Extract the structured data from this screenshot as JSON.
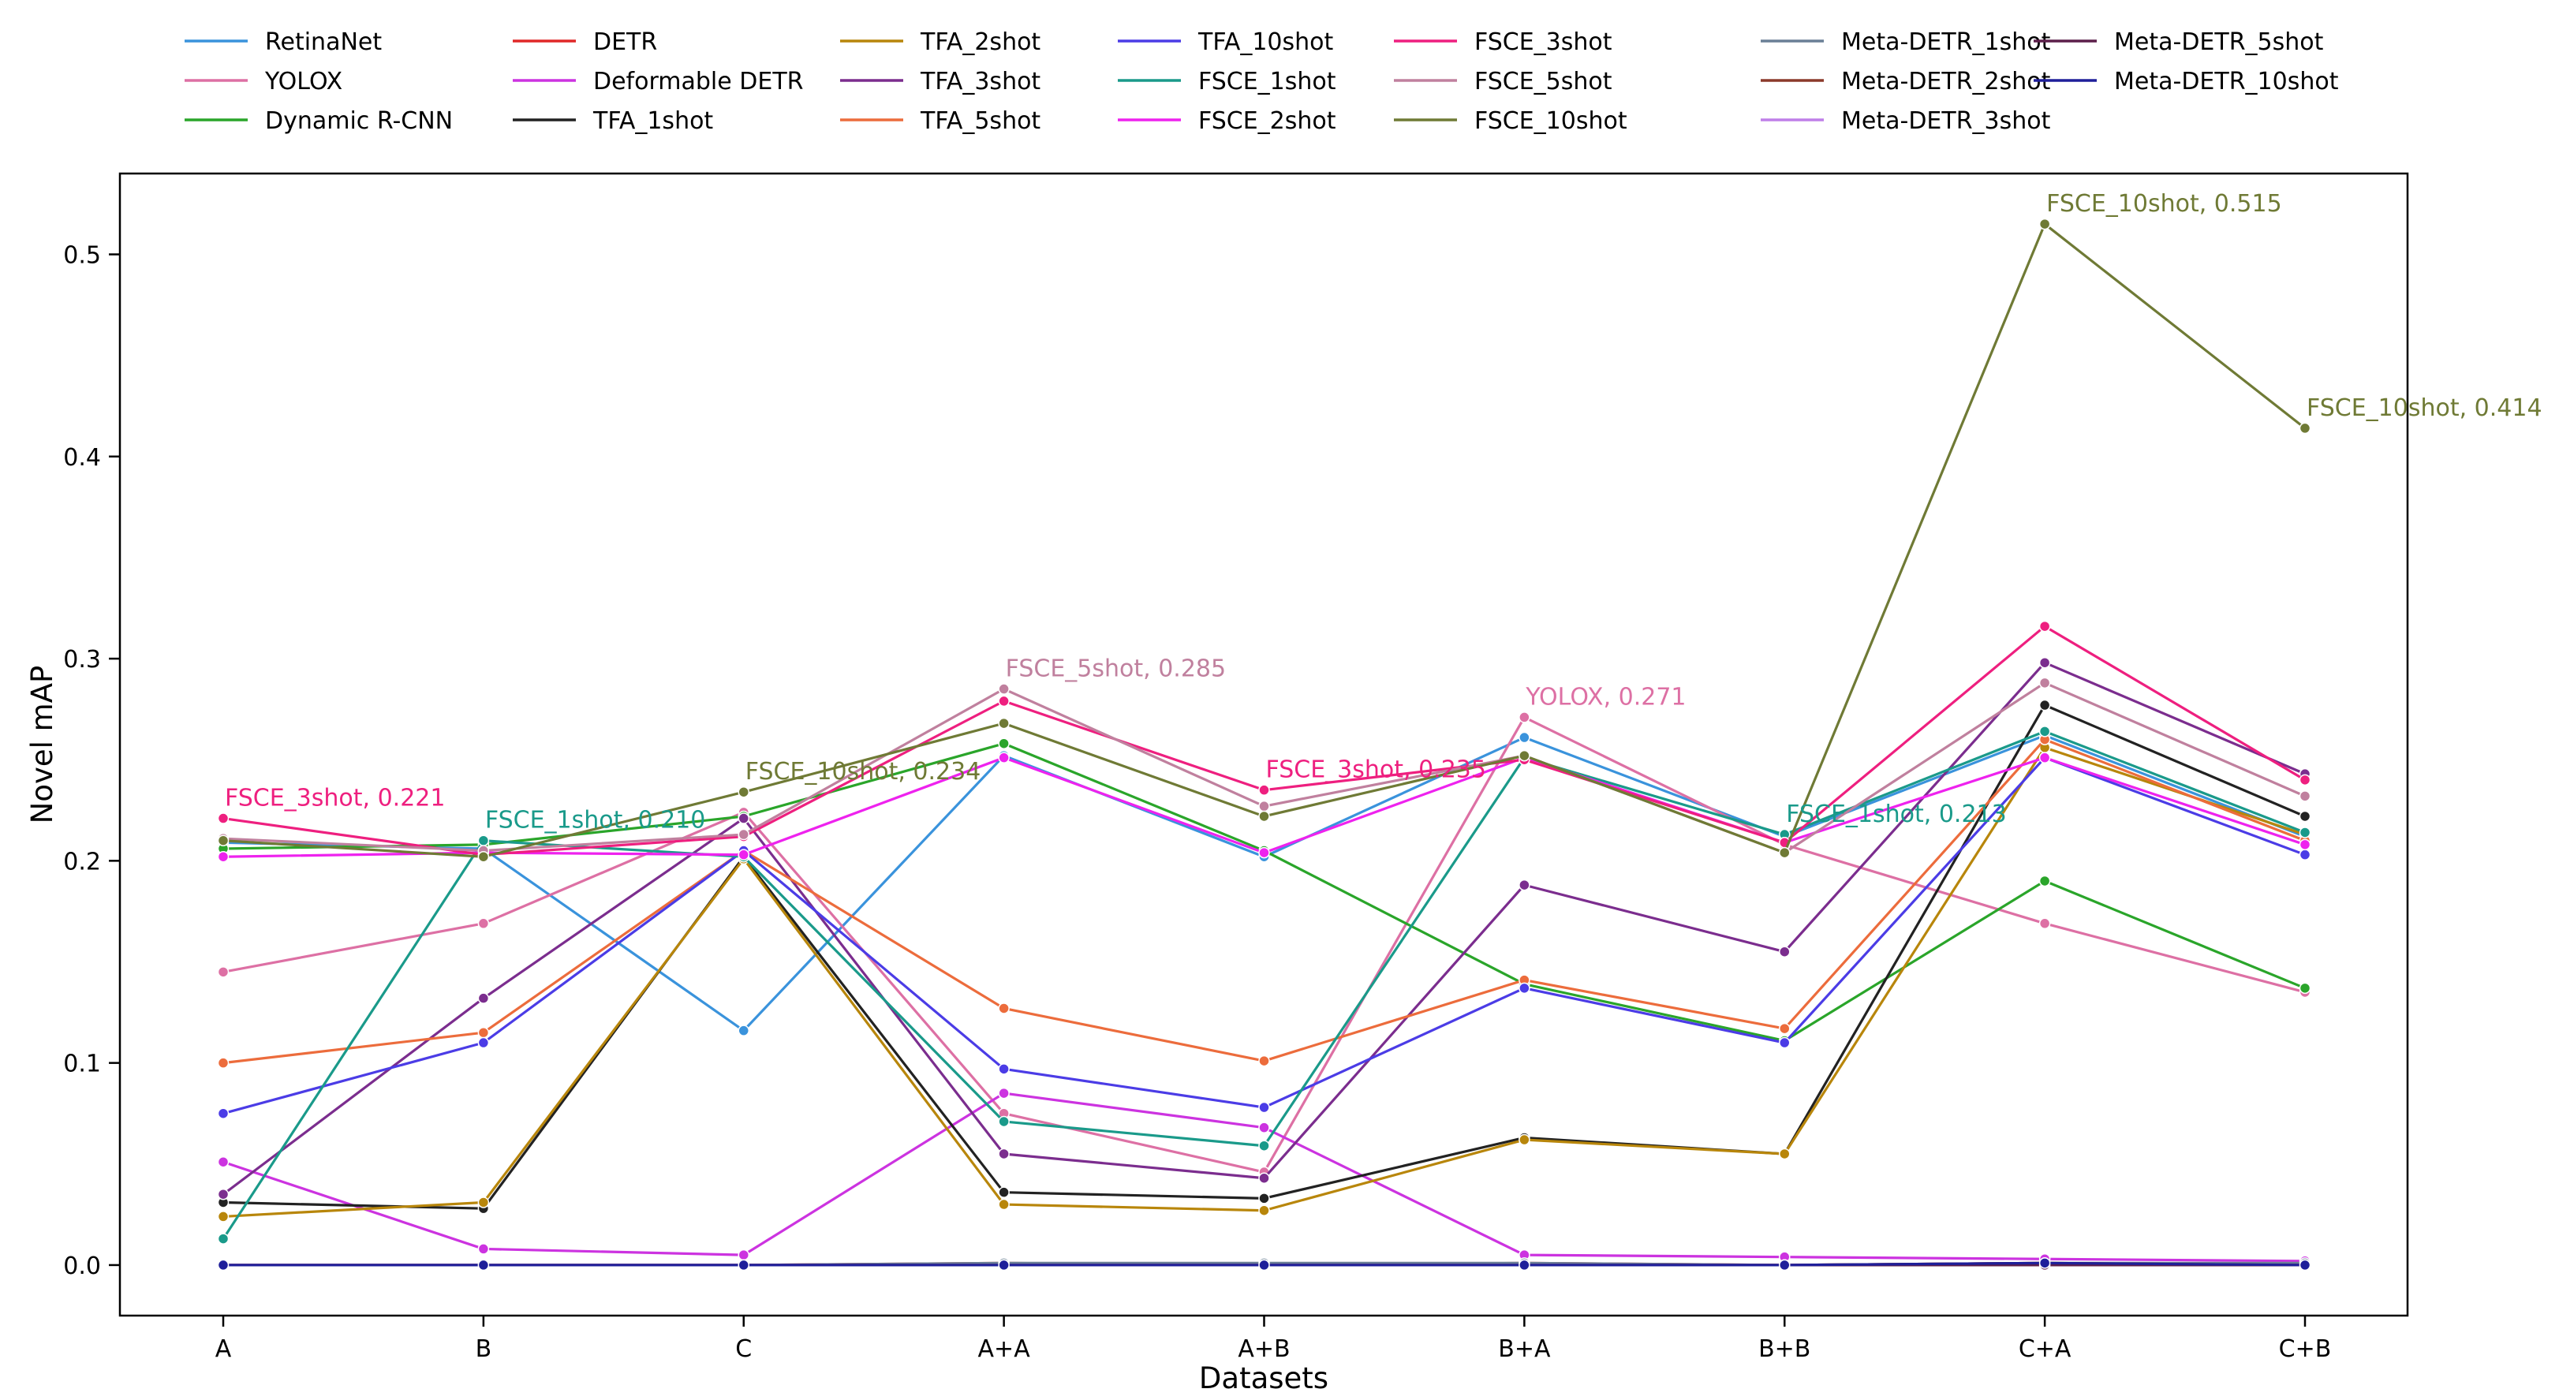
{
  "chart_data": {
    "type": "line",
    "title": "",
    "xlabel": "Datasets",
    "ylabel": "Novel mAP",
    "categories": [
      "A",
      "B",
      "C",
      "A+A",
      "A+B",
      "B+A",
      "B+B",
      "C+A",
      "C+B"
    ],
    "ylim": [
      -0.025,
      0.54
    ],
    "yticks": [
      0.0,
      0.1,
      0.2,
      0.3,
      0.4,
      0.5
    ],
    "ytick_labels": [
      "0.0",
      "0.1",
      "0.2",
      "0.3",
      "0.4",
      "0.5"
    ],
    "grid": false,
    "legend_position": "top",
    "series": [
      {
        "name": "RetinaNet",
        "color": "#3a93dc",
        "values": [
          0.209,
          0.206,
          0.116,
          0.252,
          0.202,
          0.261,
          0.212,
          0.262,
          0.212
        ]
      },
      {
        "name": "YOLOX",
        "color": "#dd70a4",
        "values": [
          0.145,
          0.169,
          0.224,
          0.075,
          0.046,
          0.271,
          0.208,
          0.169,
          0.135
        ]
      },
      {
        "name": "Dynamic R-CNN",
        "color": "#2aa52a",
        "values": [
          0.206,
          0.208,
          0.222,
          0.258,
          0.205,
          0.139,
          0.111,
          0.19,
          0.137
        ]
      },
      {
        "name": "DETR",
        "color": "#e02828",
        "values": [
          0.0,
          0.0,
          0.0,
          0.001,
          0.0,
          0.001,
          0.0,
          0.001,
          0.0
        ]
      },
      {
        "name": "Deformable DETR",
        "color": "#cc33e0",
        "values": [
          0.051,
          0.008,
          0.005,
          0.085,
          0.068,
          0.005,
          0.004,
          0.003,
          0.002
        ]
      },
      {
        "name": "TFA_1shot",
        "color": "#222222",
        "values": [
          0.031,
          0.028,
          0.202,
          0.036,
          0.033,
          0.063,
          0.055,
          0.277,
          0.222
        ]
      },
      {
        "name": "TFA_2shot",
        "color": "#b8860b",
        "values": [
          0.024,
          0.031,
          0.201,
          0.03,
          0.027,
          0.062,
          0.055,
          0.256,
          0.213
        ]
      },
      {
        "name": "TFA_3shot",
        "color": "#7b2d8e",
        "values": [
          0.035,
          0.132,
          0.221,
          0.055,
          0.043,
          0.188,
          0.155,
          0.298,
          0.243
        ]
      },
      {
        "name": "TFA_5shot",
        "color": "#ec6c3c",
        "values": [
          0.1,
          0.115,
          0.205,
          0.127,
          0.101,
          0.141,
          0.117,
          0.26,
          0.21
        ]
      },
      {
        "name": "TFA_10shot",
        "color": "#4b3ce6",
        "values": [
          0.075,
          0.11,
          0.205,
          0.097,
          0.078,
          0.137,
          0.11,
          0.251,
          0.203
        ]
      },
      {
        "name": "FSCE_1shot",
        "color": "#1a9a8a",
        "values": [
          0.013,
          0.21,
          0.202,
          0.071,
          0.059,
          0.251,
          0.213,
          0.264,
          0.214
        ]
      },
      {
        "name": "FSCE_2shot",
        "color": "#ee22ee",
        "values": [
          0.202,
          0.204,
          0.203,
          0.251,
          0.204,
          0.251,
          0.209,
          0.251,
          0.208
        ]
      },
      {
        "name": "FSCE_3shot",
        "color": "#ee1f7f",
        "values": [
          0.221,
          0.203,
          0.212,
          0.279,
          0.235,
          0.25,
          0.209,
          0.316,
          0.24
        ]
      },
      {
        "name": "FSCE_5shot",
        "color": "#c0809e",
        "values": [
          0.211,
          0.205,
          0.213,
          0.285,
          0.227,
          0.252,
          0.204,
          0.288,
          0.232
        ]
      },
      {
        "name": "FSCE_10shot",
        "color": "#6f7a35",
        "values": [
          0.21,
          0.202,
          0.234,
          0.268,
          0.222,
          0.252,
          0.204,
          0.515,
          0.414
        ]
      },
      {
        "name": "Meta-DETR_1shot",
        "color": "#6a7f96",
        "values": [
          0.0,
          0.0,
          0.0,
          0.001,
          0.001,
          0.001,
          0.0,
          0.001,
          0.001
        ]
      },
      {
        "name": "Meta-DETR_2shot",
        "color": "#8b3a2a",
        "values": [
          0.0,
          0.0,
          0.0,
          0.0,
          0.0,
          0.0,
          0.0,
          0.001,
          0.0
        ]
      },
      {
        "name": "Meta-DETR_3shot",
        "color": "#bf7fe8",
        "values": [
          0.0,
          0.0,
          0.0,
          0.0,
          0.0,
          0.0,
          0.0,
          0.0,
          0.0
        ]
      },
      {
        "name": "Meta-DETR_5shot",
        "color": "#5c1f4a",
        "values": [
          0.0,
          0.0,
          0.0,
          0.0,
          0.0,
          0.0,
          0.0,
          0.0,
          0.0
        ]
      },
      {
        "name": "Meta-DETR_10shot",
        "color": "#1f1f9a",
        "values": [
          0.0,
          0.0,
          0.0,
          0.0,
          0.0,
          0.0,
          0.0,
          0.001,
          0.0
        ]
      }
    ],
    "annotations": [
      {
        "text": "FSCE_3shot, 0.221",
        "series": "FSCE_3shot",
        "category": "A",
        "value": 0.221
      },
      {
        "text": "FSCE_1shot, 0.210",
        "series": "FSCE_1shot",
        "category": "B",
        "value": 0.21
      },
      {
        "text": "FSCE_10shot, 0.234",
        "series": "FSCE_10shot",
        "category": "C",
        "value": 0.234
      },
      {
        "text": "FSCE_5shot, 0.285",
        "series": "FSCE_5shot",
        "category": "A+A",
        "value": 0.285
      },
      {
        "text": "FSCE_3shot, 0.235",
        "series": "FSCE_3shot",
        "category": "A+B",
        "value": 0.235
      },
      {
        "text": "YOLOX, 0.271",
        "series": "YOLOX",
        "category": "B+A",
        "value": 0.271
      },
      {
        "text": "FSCE_1shot, 0.213",
        "series": "FSCE_1shot",
        "category": "B+B",
        "value": 0.213
      },
      {
        "text": "FSCE_10shot, 0.515",
        "series": "FSCE_10shot",
        "category": "C+A",
        "value": 0.515
      },
      {
        "text": "FSCE_10shot, 0.414",
        "series": "FSCE_10shot",
        "category": "C+B",
        "value": 0.414
      }
    ]
  }
}
